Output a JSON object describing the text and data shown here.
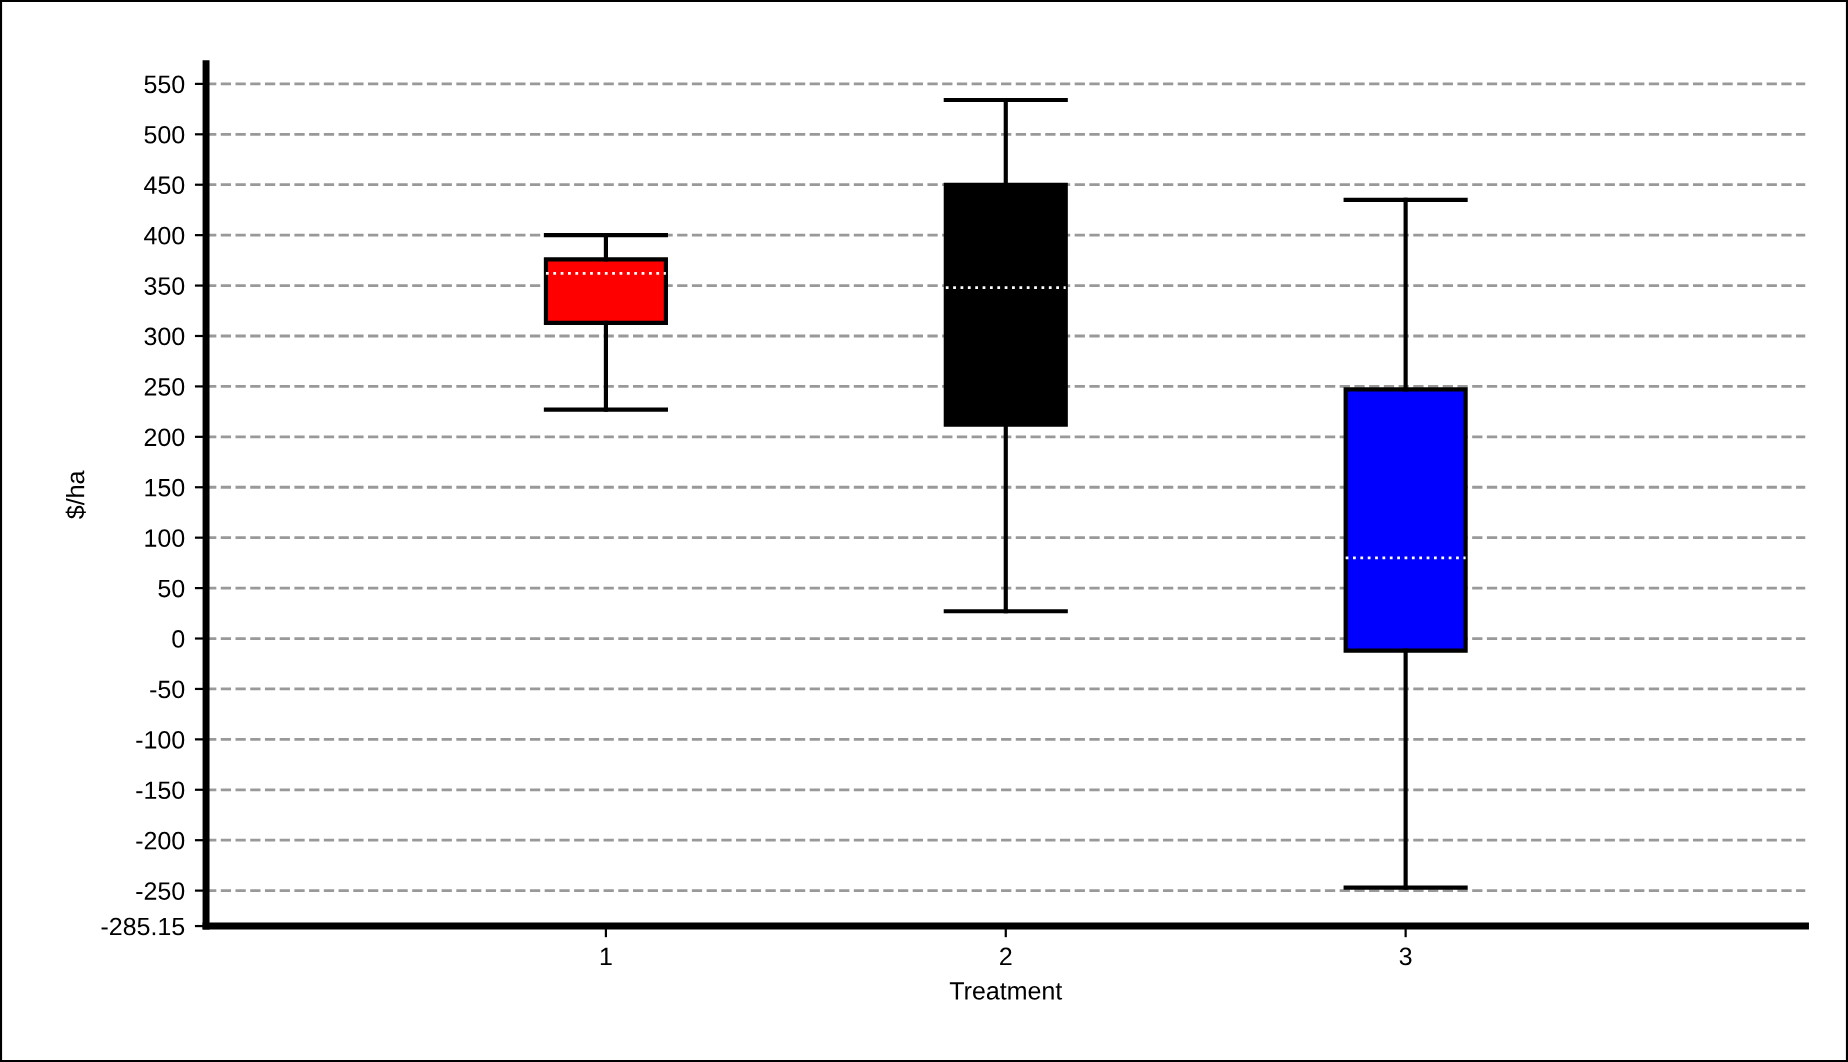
{
  "chart_data": {
    "type": "box",
    "xlabel": "Treatment",
    "ylabel": "$/ha",
    "categories": [
      "1",
      "2",
      "3"
    ],
    "colors": [
      "#ff0000",
      "#000000",
      "#0000ff"
    ],
    "boxes": [
      {
        "low": 227,
        "q1": 313,
        "median": 362,
        "q3": 376,
        "high": 400
      },
      {
        "low": 27,
        "q1": 212,
        "median": 348,
        "q3": 450,
        "high": 534
      },
      {
        "low": -247,
        "q1": -12,
        "median": 80,
        "q3": 247,
        "high": 435
      }
    ],
    "ylim": [
      -285.15,
      570
    ],
    "yticks": [
      -285.15,
      -250,
      -200,
      -150,
      -100,
      -50,
      0,
      50,
      100,
      150,
      200,
      250,
      300,
      350,
      400,
      450,
      500,
      550
    ],
    "grid": "y"
  }
}
